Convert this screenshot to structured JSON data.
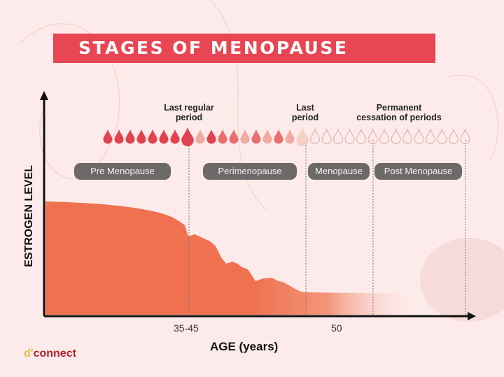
{
  "title": "STAGES OF MENOPAUSE",
  "axes": {
    "y_label": "ESTROGEN LEVEL",
    "x_label": "AGE (years)",
    "x_ticks": [
      "35-45",
      "50"
    ]
  },
  "events": [
    {
      "line1": "Last regular",
      "line2": "period"
    },
    {
      "line1": "Last",
      "line2": "period"
    },
    {
      "line1": "Permanent",
      "line2": "cessation of periods"
    }
  ],
  "stages": [
    "Pre Menopause",
    "Perimenopause",
    "Menopause",
    "Post Menopause"
  ],
  "drops": [
    "dark",
    "dark",
    "dark",
    "dark",
    "dark",
    "dark",
    "dark",
    "big-dark",
    "light",
    "dark",
    "medium",
    "medium",
    "light",
    "medium",
    "light",
    "medium",
    "light",
    "big-beige",
    "outline",
    "outline",
    "outline",
    "outline",
    "outline",
    "outline",
    "outline",
    "outline",
    "outline",
    "outline",
    "outline",
    "outline",
    "outline",
    "outline"
  ],
  "colors": {
    "banner": "#e84653",
    "curve": "#ef7150",
    "pill": "#6d6968",
    "dark": "#e2424f",
    "medium": "#ea6e6e",
    "light": "#f0aaa4",
    "beige": "#f6d0c2",
    "outline": "#eab3b3"
  },
  "logo": {
    "prefix": "d'",
    "text": "connect"
  }
}
